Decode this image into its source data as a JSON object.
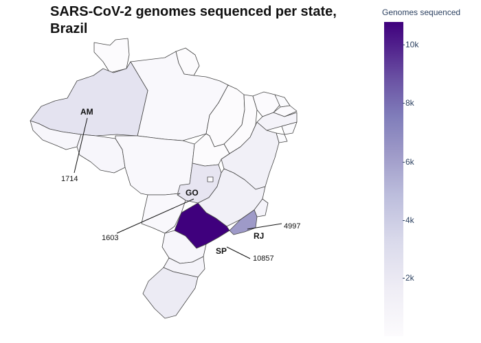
{
  "title": "SARS-CoV-2 genomes sequenced per state, Brazil",
  "colorbar": {
    "title": "Genomes sequenced",
    "ticks": [
      "2k",
      "4k",
      "6k",
      "8k",
      "10k"
    ],
    "colors": [
      "#fcfbfd",
      "#dadaeb",
      "#9e9ac8",
      "#6a51a3",
      "#3f007d"
    ]
  },
  "chart_data": {
    "type": "choropleth",
    "region": "Brazil",
    "zmax": 10857,
    "labeled_states": [
      {
        "state": "AM",
        "value": 1714,
        "value_label": "1714"
      },
      {
        "state": "GO",
        "value": 1603,
        "value_label": "1603"
      },
      {
        "state": "SP",
        "value": 10857,
        "value_label": "10857"
      },
      {
        "state": "RJ",
        "value": 4997,
        "value_label": "4997"
      }
    ],
    "state_fills": {
      "RR": "#fcfbfd",
      "AP": "#fcfbfd",
      "PA": "#f9f8fc",
      "AM": "#e4e3f0",
      "AC": "#f7f6fb",
      "RO": "#f7f6fb",
      "MT": "#f9f8fc",
      "MA": "#fcfbfd",
      "PI": "#fcfbfd",
      "CE": "#fbfafd",
      "RN": "#fafafd",
      "PB": "#fbfafd",
      "PE": "#f4f3f9",
      "AL": "#fafafd",
      "SE": "#fafafd",
      "BA": "#f1f0f7",
      "TO": "#fcfbfd",
      "GO": "#e7e5f1",
      "DF": "#fcfbfd",
      "MS": "#f9f8fc",
      "MG": "#f1f0f7",
      "ES": "#f5f4fa",
      "RJ": "#9e9ac8",
      "SP": "#3f007d",
      "PR": "#f7f6fb",
      "SC": "#f4f3f9",
      "RS": "#ecebf4"
    }
  }
}
